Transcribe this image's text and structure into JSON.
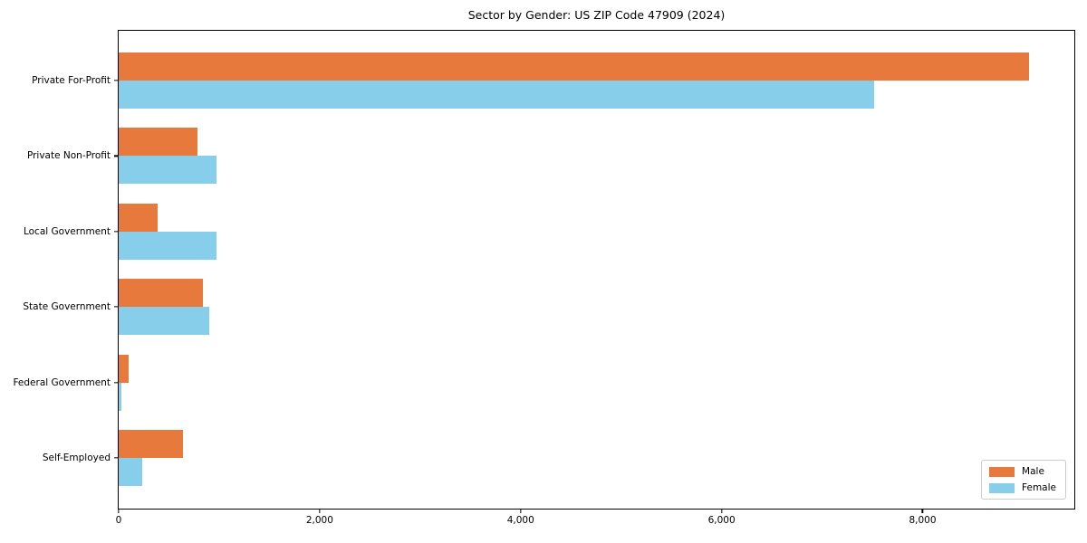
{
  "chart_data": {
    "type": "bar",
    "orientation": "horizontal",
    "title": "Sector by Gender: US ZIP Code 47909 (2024)",
    "categories": [
      "Private For-Profit",
      "Private Non-Profit",
      "Local Government",
      "State Government",
      "Federal Government",
      "Self-Employed"
    ],
    "series": [
      {
        "name": "Male",
        "color": "#e8793d",
        "values": [
          9055,
          780,
          390,
          835,
          95,
          640
        ]
      },
      {
        "name": "Female",
        "color": "#87ceeb",
        "values": [
          7520,
          970,
          970,
          905,
          30,
          230
        ]
      }
    ],
    "xlabel": "",
    "ylabel": "",
    "xlim": [
      0,
      9510
    ],
    "xticks": [
      0,
      2000,
      4000,
      6000,
      8000
    ],
    "xtick_labels": [
      "0",
      "2,000",
      "4,000",
      "6,000",
      "8,000"
    ],
    "legend_position": "lower right",
    "grid": false,
    "background_color": "#ffffff",
    "spine_color": "#000000"
  }
}
